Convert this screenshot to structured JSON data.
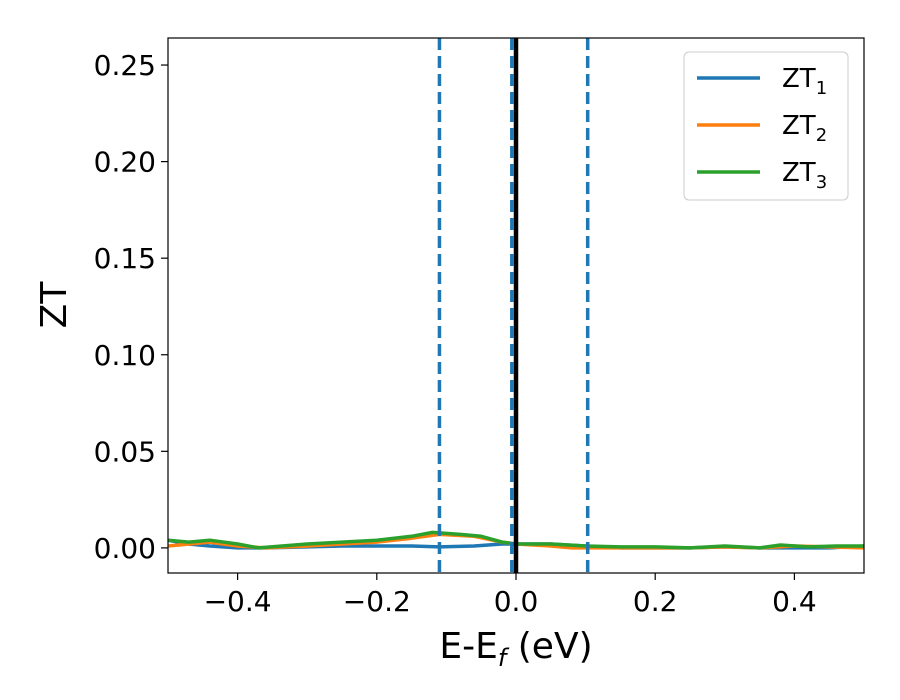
{
  "chart_data": {
    "type": "line",
    "xlabel": "E-E",
    "xlabel_sub": "f",
    "xlabel_unit": "(eV)",
    "ylabel": "ZT",
    "xlim": [
      -0.5,
      0.5
    ],
    "ylim": [
      -0.013,
      0.264
    ],
    "xticks": [
      -0.4,
      -0.2,
      0.0,
      0.2,
      0.4
    ],
    "xtick_labels": [
      "−0.4",
      "−0.2",
      "0.0",
      "0.2",
      "0.4"
    ],
    "yticks": [
      0.0,
      0.05,
      0.1,
      0.15,
      0.2,
      0.25
    ],
    "ytick_labels": [
      "0.00",
      "0.05",
      "0.10",
      "0.15",
      "0.20",
      "0.25"
    ],
    "grid": false,
    "legend_position": "top-right",
    "series": [
      {
        "name": "ZT",
        "name_sub": "1",
        "color": "#1f77b4",
        "x": [
          -0.5,
          -0.47,
          -0.44,
          -0.4,
          -0.36,
          -0.3,
          -0.25,
          -0.2,
          -0.15,
          -0.11,
          -0.06,
          -0.02,
          0.0,
          0.05,
          0.1,
          0.15,
          0.2,
          0.25,
          0.3,
          0.35,
          0.4,
          0.45,
          0.5
        ],
        "y": [
          0.004,
          0.002,
          0.001,
          0.0,
          0.0,
          0.0005,
          0.001,
          0.001,
          0.001,
          0.0005,
          0.001,
          0.002,
          0.002,
          0.002,
          0.001,
          0.0,
          0.0,
          0.0,
          0.0005,
          0.0,
          0.0,
          0.0,
          0.001
        ]
      },
      {
        "name": "ZT",
        "name_sub": "2",
        "color": "#ff7f0e",
        "x": [
          -0.5,
          -0.47,
          -0.44,
          -0.4,
          -0.36,
          -0.3,
          -0.25,
          -0.2,
          -0.15,
          -0.11,
          -0.06,
          -0.02,
          0.0,
          0.05,
          0.08,
          0.12,
          0.2,
          0.25,
          0.3,
          0.35,
          0.4,
          0.45,
          0.5
        ],
        "y": [
          0.001,
          0.002,
          0.003,
          0.001,
          0.0,
          0.001,
          0.002,
          0.003,
          0.005,
          0.007,
          0.006,
          0.003,
          0.002,
          0.001,
          0.0,
          0.0,
          0.0,
          0.0,
          0.0005,
          0.0,
          0.001,
          0.0005,
          0.0
        ]
      },
      {
        "name": "ZT",
        "name_sub": "3",
        "color": "#2ca02c",
        "x": [
          -0.5,
          -0.47,
          -0.44,
          -0.4,
          -0.37,
          -0.3,
          -0.25,
          -0.2,
          -0.15,
          -0.12,
          -0.08,
          -0.05,
          -0.02,
          0.0,
          0.05,
          0.1,
          0.15,
          0.2,
          0.25,
          0.3,
          0.35,
          0.38,
          0.42,
          0.46,
          0.5
        ],
        "y": [
          0.004,
          0.003,
          0.004,
          0.002,
          0.0,
          0.002,
          0.003,
          0.004,
          0.006,
          0.008,
          0.007,
          0.006,
          0.003,
          0.002,
          0.002,
          0.001,
          0.0005,
          0.0005,
          0.0,
          0.001,
          0.0,
          0.0015,
          0.0005,
          0.001,
          0.001
        ]
      }
    ],
    "vlines": [
      {
        "x": -0.11,
        "style": "dashed",
        "color": "#1f77b4"
      },
      {
        "x": -0.006,
        "style": "dashed",
        "color": "#1f77b4"
      },
      {
        "x": 0.0,
        "style": "solid",
        "color": "#000000"
      },
      {
        "x": 0.103,
        "style": "dashed",
        "color": "#1f77b4"
      }
    ]
  }
}
